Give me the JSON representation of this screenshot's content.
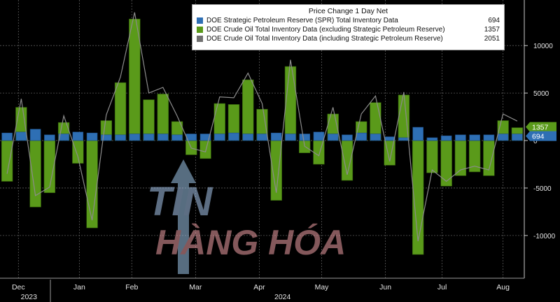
{
  "chart_data": {
    "type": "bar",
    "title": "Price Change 1 Day Net",
    "ylim": [
      -14500,
      14800
    ],
    "y_ticks": [
      10000,
      5000,
      0,
      -5000,
      -10000
    ],
    "y_tick_labels": [
      "10000",
      "5000",
      "0",
      "-5000",
      "-10000"
    ],
    "x_month_labels": [
      "Dec",
      "Jan",
      "Feb",
      "Mar",
      "Apr",
      "May",
      "Jun",
      "Jul",
      "Aug"
    ],
    "x_month_positions": [
      1.3,
      5.6,
      9.3,
      13.8,
      18.3,
      22.7,
      27.2,
      31.2,
      35.5
    ],
    "x_year_labels": [
      {
        "text": "2023",
        "pos": 1.3
      },
      {
        "text": "2024",
        "pos": 19.2
      }
    ],
    "series": [
      {
        "name": "DOE Strategic Petroleum Reserve (SPR) Total Inventory Data",
        "color": "#2e6fb4",
        "last_value": "694",
        "values": [
          800,
          900,
          1200,
          600,
          700,
          900,
          800,
          600,
          600,
          700,
          700,
          700,
          600,
          700,
          700,
          700,
          800,
          700,
          700,
          800,
          700,
          700,
          900,
          700,
          600,
          800,
          700,
          400,
          300,
          1400,
          300,
          500,
          600,
          600,
          600,
          700,
          694
        ]
      },
      {
        "name": "DOE Crude Oil Total Inventory Data (excluding Strategic Petroleum Reserve)",
        "color": "#5a9a1a",
        "last_value": "1357",
        "values": [
          -4300,
          3500,
          -7000,
          -5500,
          1900,
          -2400,
          -9200,
          2100,
          6100,
          12800,
          4300,
          4900,
          2000,
          -1500,
          -1900,
          3900,
          3800,
          6400,
          3300,
          -6300,
          7800,
          -1300,
          -2500,
          2800,
          -4200,
          2000,
          4000,
          -2600,
          4800,
          -12000,
          -3400,
          -4800,
          -3700,
          -3300,
          -3700,
          2100,
          1357
        ]
      },
      {
        "name": "DOE Crude Oil Total Inventory Data (including Strategic Petroleum Reserve)",
        "color": "#707070",
        "last_value": "2051",
        "values": [
          -3500,
          4400,
          -5800,
          -4900,
          2600,
          -1700,
          -8400,
          2700,
          6700,
          13500,
          5000,
          5600,
          2600,
          -800,
          -1200,
          4600,
          4500,
          7100,
          3900,
          -5500,
          8500,
          -600,
          -1600,
          3500,
          -3600,
          2800,
          4700,
          -2200,
          5100,
          -10600,
          -3100,
          -4300,
          -3100,
          -2700,
          -3100,
          2800,
          2051
        ]
      }
    ],
    "right_labels": [
      "1357",
      "694"
    ]
  },
  "watermark": {
    "line1": "TIN",
    "line2": "HÀNG HÓA"
  }
}
